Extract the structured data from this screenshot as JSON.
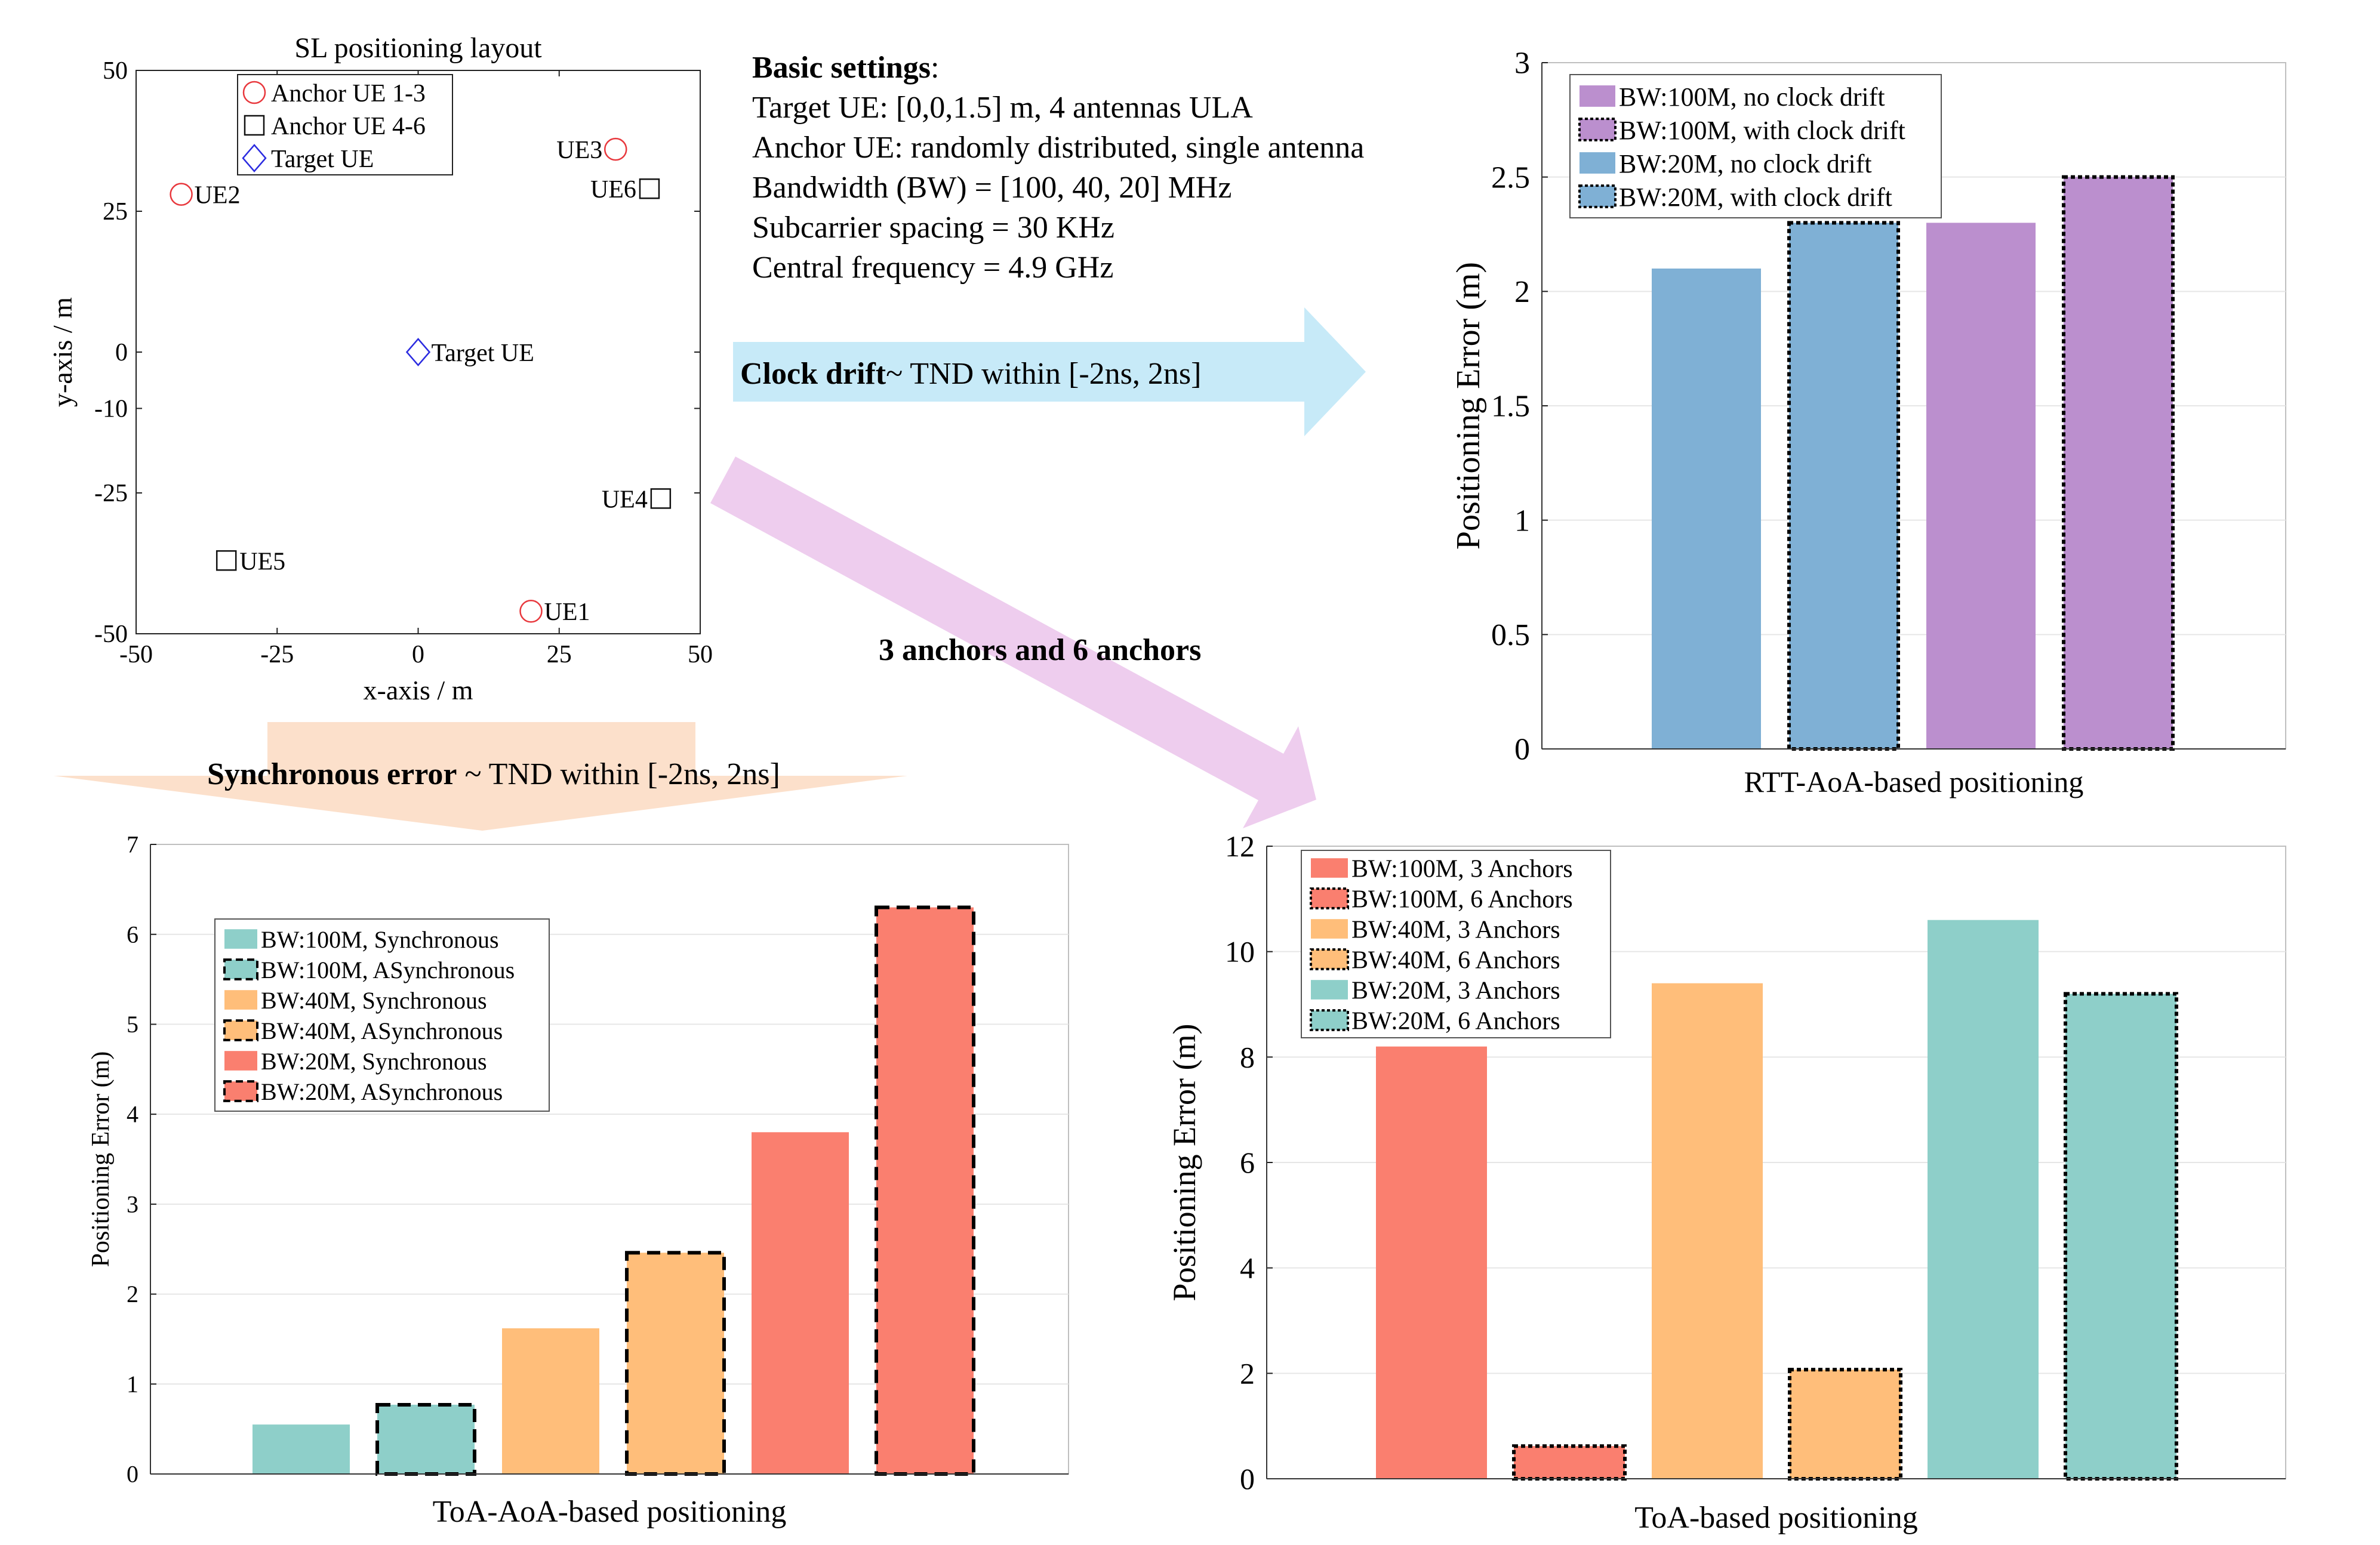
{
  "settings": {
    "heading": "Basic settings",
    "lines": [
      "Target UE: [0,0,1.5] m, 4 antennas ULA",
      "Anchor UE: randomly distributed, single antenna",
      "Bandwidth (BW) = [100, 40, 20] MHz",
      "Subcarrier spacing = 30 KHz",
      "Central frequency = 4.9 GHz"
    ]
  },
  "arrows": {
    "clock": {
      "bold": "Clock drift",
      "rest": "~ TND within [-2ns, 2ns]"
    },
    "anchors": {
      "bold": "3 anchors and 6 anchors"
    },
    "sync": {
      "bold": "Synchronous error",
      "rest": " ~ TND within [-2ns, 2ns]"
    }
  },
  "colors": {
    "purple": "#BB8FCE",
    "blue": "#7FB0D5",
    "teal": "#8ECFC9",
    "orange": "#FFBE7A",
    "red": "#FA7F6F",
    "anchor_circle": "#E8383D",
    "target_diamond": "#2B2BE0",
    "arrow_blue": "#C7EAF8",
    "arrow_pink": "#EECDEE",
    "arrow_peach": "#FCE0CB"
  },
  "chart_data": [
    {
      "id": "layout",
      "type": "scatter",
      "title": "SL positioning layout",
      "xlabel": "x-axis / m",
      "ylabel": "y-axis / m",
      "xlim": [
        -50,
        50
      ],
      "ylim": [
        -50,
        50
      ],
      "xticks": [
        -50,
        -25,
        0,
        25,
        50
      ],
      "yticks": [
        -50,
        -25,
        -10,
        0,
        25,
        50
      ],
      "legend": [
        "Anchor UE 1-3",
        "Anchor UE 4-6",
        "Target UE"
      ],
      "points": [
        {
          "label": "UE1",
          "x": 20,
          "y": -46,
          "marker": "circle",
          "label_side": "right"
        },
        {
          "label": "UE2",
          "x": -42,
          "y": 28,
          "marker": "circle",
          "label_side": "right"
        },
        {
          "label": "UE3",
          "x": 35,
          "y": 36,
          "marker": "circle",
          "label_side": "left"
        },
        {
          "label": "UE4",
          "x": 43,
          "y": -26,
          "marker": "square",
          "label_side": "left"
        },
        {
          "label": "UE5",
          "x": -34,
          "y": -37,
          "marker": "square",
          "label_side": "right"
        },
        {
          "label": "UE6",
          "x": 41,
          "y": 29,
          "marker": "square",
          "label_side": "left"
        },
        {
          "label": "Target UE",
          "x": 0,
          "y": 0,
          "marker": "diamond",
          "label_side": "right"
        }
      ]
    },
    {
      "id": "rtt",
      "type": "bar",
      "xlabel": "RTT-AoA-based positioning",
      "ylabel": "Positioning Error (m)",
      "ylim": [
        0,
        3
      ],
      "yticks": [
        "0",
        "0.5",
        "1",
        "1.5",
        "2",
        "2.5",
        "3"
      ],
      "legend_order": [
        2,
        3,
        0,
        1
      ],
      "series": [
        {
          "name": "BW:20M, no clock drift",
          "value": 2.1,
          "color": "blue",
          "dash": "none"
        },
        {
          "name": "BW:20M, with clock drift",
          "value": 2.3,
          "color": "blue",
          "dash": "dotted"
        },
        {
          "name": "BW:100M, no clock drift",
          "value": 2.3,
          "color": "purple",
          "dash": "none"
        },
        {
          "name": "BW:100M, with clock drift",
          "value": 2.5,
          "color": "purple",
          "dash": "dotted"
        }
      ]
    },
    {
      "id": "toa_aoa",
      "type": "bar",
      "xlabel": "ToA-AoA-based positioning",
      "ylabel": "Positioning Error (m)",
      "ylim": [
        0,
        7
      ],
      "yticks": [
        "0",
        "1",
        "2",
        "3",
        "4",
        "5",
        "6",
        "7"
      ],
      "legend_order": [
        0,
        1,
        2,
        3,
        4,
        5
      ],
      "series": [
        {
          "name": "BW:100M, Synchronous",
          "value": 0.55,
          "color": "teal",
          "dash": "none"
        },
        {
          "name": "BW:100M, ASynchronous",
          "value": 0.77,
          "color": "teal",
          "dash": "dashed"
        },
        {
          "name": "BW:40M, Synchronous",
          "value": 1.62,
          "color": "orange",
          "dash": "none"
        },
        {
          "name": "BW:40M, ASynchronous",
          "value": 2.46,
          "color": "orange",
          "dash": "dashed"
        },
        {
          "name": "BW:20M, Synchronous",
          "value": 3.8,
          "color": "red",
          "dash": "none"
        },
        {
          "name": "BW:20M, ASynchronous",
          "value": 6.3,
          "color": "red",
          "dash": "dashed"
        }
      ]
    },
    {
      "id": "toa",
      "type": "bar",
      "xlabel": "ToA-based positioning",
      "ylabel": "Positioning Error (m)",
      "ylim": [
        0,
        12
      ],
      "yticks": [
        "0",
        "2",
        "4",
        "6",
        "8",
        "10",
        "12"
      ],
      "legend_order": [
        0,
        1,
        2,
        3,
        4,
        5
      ],
      "series": [
        {
          "name": "BW:100M, 3 Anchors",
          "value": 8.2,
          "color": "red",
          "dash": "none"
        },
        {
          "name": "BW:100M, 6 Anchors",
          "value": 0.62,
          "color": "red",
          "dash": "dotted"
        },
        {
          "name": "BW:40M, 3 Anchors",
          "value": 9.4,
          "color": "orange",
          "dash": "none"
        },
        {
          "name": "BW:40M, 6 Anchors",
          "value": 2.07,
          "color": "orange",
          "dash": "dotted"
        },
        {
          "name": "BW:20M, 3 Anchors",
          "value": 10.6,
          "color": "teal",
          "dash": "none"
        },
        {
          "name": "BW:20M, 6 Anchors",
          "value": 9.2,
          "color": "teal",
          "dash": "dotted"
        }
      ]
    }
  ]
}
